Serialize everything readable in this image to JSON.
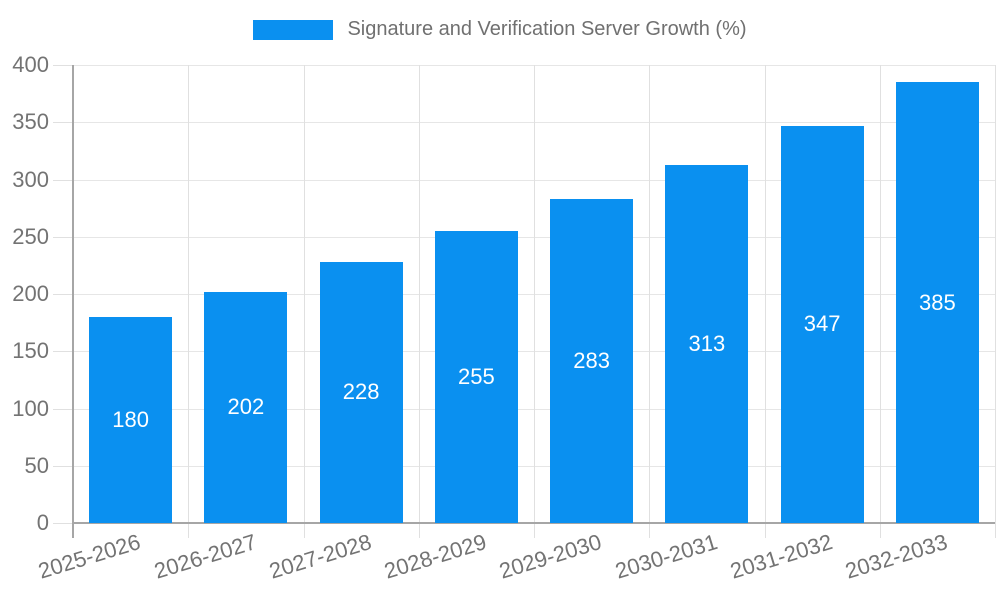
{
  "chart_data": {
    "type": "bar",
    "title": "Signature and Verification Server Growth (%)",
    "categories": [
      "2025-2026",
      "2026-2027",
      "2027-2028",
      "2028-2029",
      "2029-2030",
      "2030-2031",
      "2031-2032",
      "2032-2033"
    ],
    "values": [
      180,
      202,
      228,
      255,
      283,
      313,
      347,
      385
    ],
    "xlabel": "",
    "ylabel": "",
    "ylim": [
      0,
      400
    ],
    "yticks": [
      0,
      50,
      100,
      150,
      200,
      250,
      300,
      350,
      400
    ],
    "grid": true,
    "bar_labels_inside": true,
    "legend_position": "top-center",
    "colors": {
      "bar": "#0a90f0",
      "bar_label_text": "#ffffff",
      "axis_text": "#737373",
      "legend_text": "#707070",
      "axis_line": "#a6a6a6",
      "gridline": "#e6e6e6",
      "tick": "#e0e0e0",
      "background": "#ffffff"
    }
  }
}
